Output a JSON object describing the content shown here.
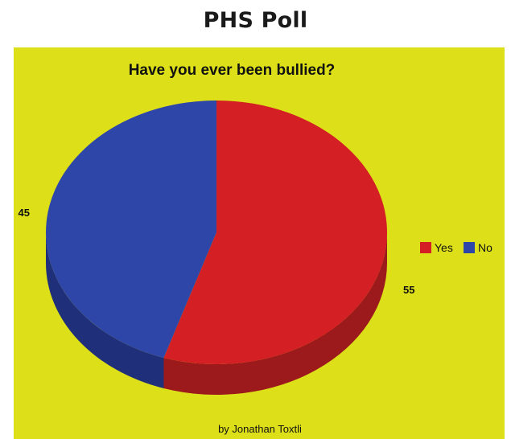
{
  "page": {
    "title": "PHS Poll"
  },
  "chart_data": {
    "type": "pie",
    "title": "Have you ever been bullied?",
    "categories": [
      "Yes",
      "No"
    ],
    "values": [
      55,
      45
    ],
    "colors": [
      "#d42024",
      "#2e46a8"
    ],
    "side_colors": [
      "#9c1a1c",
      "#1f2f7a"
    ],
    "background": "#dde019",
    "legend": {
      "placement": "right",
      "entries": [
        "Yes",
        "No"
      ]
    },
    "three_d": true,
    "credit": "by Jonathan Toxtli"
  }
}
